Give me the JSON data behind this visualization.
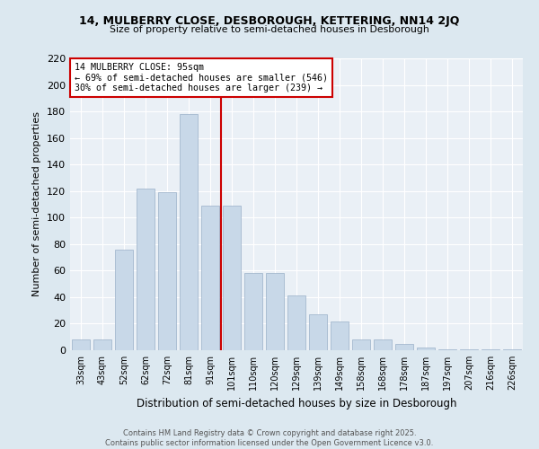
{
  "title1": "14, MULBERRY CLOSE, DESBOROUGH, KETTERING, NN14 2JQ",
  "title2": "Size of property relative to semi-detached houses in Desborough",
  "xlabel": "Distribution of semi-detached houses by size in Desborough",
  "ylabel": "Number of semi-detached properties",
  "categories": [
    "33sqm",
    "43sqm",
    "52sqm",
    "62sqm",
    "72sqm",
    "81sqm",
    "91sqm",
    "101sqm",
    "110sqm",
    "120sqm",
    "129sqm",
    "139sqm",
    "149sqm",
    "158sqm",
    "168sqm",
    "178sqm",
    "187sqm",
    "197sqm",
    "207sqm",
    "216sqm",
    "226sqm"
  ],
  "values": [
    8,
    8,
    76,
    122,
    119,
    178,
    109,
    109,
    58,
    58,
    41,
    27,
    22,
    8,
    8,
    5,
    2,
    1,
    1,
    1,
    1
  ],
  "bar_color": "#c8d8e8",
  "bar_edgecolor": "#9ab0c8",
  "vline_color": "#cc0000",
  "annotation_title": "14 MULBERRY CLOSE: 95sqm",
  "annotation_line1": "← 69% of semi-detached houses are smaller (546)",
  "annotation_line2": "30% of semi-detached houses are larger (239) →",
  "annotation_box_color": "#cc0000",
  "ylim": [
    0,
    220
  ],
  "yticks": [
    0,
    20,
    40,
    60,
    80,
    100,
    120,
    140,
    160,
    180,
    200,
    220
  ],
  "footer1": "Contains HM Land Registry data © Crown copyright and database right 2025.",
  "footer2": "Contains public sector information licensed under the Open Government Licence v3.0.",
  "bg_color": "#dce8f0",
  "plot_bg_color": "#eaf0f6"
}
